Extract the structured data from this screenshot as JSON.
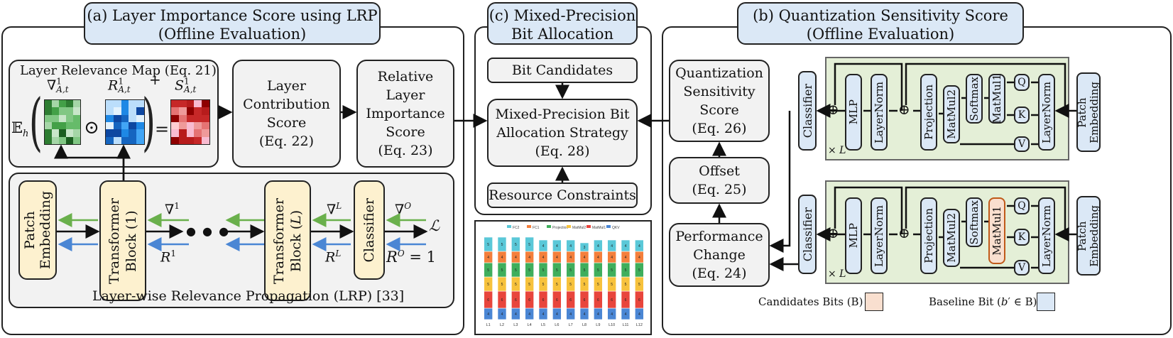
{
  "panels": {
    "a": {
      "title_line1": "(a) Layer Importance Score using LRP",
      "title_line2": "(Offline Evaluation)"
    },
    "c": {
      "title_line1": "(c) Mixed-Precision",
      "title_line2": "Bit Allocation"
    },
    "b": {
      "title_line1": "(b) Quantization Sensitivity Score",
      "title_line2": "(Offline Evaluation)"
    }
  },
  "relevance_map": {
    "title": "Layer Relevance Map (Eq. 21)",
    "expectation": "𝔼",
    "expectation_sub": "h",
    "grad_label": "∇",
    "grad_sup": "1",
    "grad_sub": "A,t",
    "odot": "⊙",
    "r_label": "R",
    "r_sup": "1",
    "r_sub": "A,t",
    "plus": "+",
    "equals": "=",
    "s_label": "S",
    "s_sup": "1",
    "s_sub": "A,t"
  },
  "contribution": {
    "line1": "Layer",
    "line2": "Contribution",
    "line3": "Score",
    "line4": "(Eq. 22)"
  },
  "relative": {
    "line1": "Relative",
    "line2": "Layer",
    "line3": "Importance",
    "line4": "Score",
    "line5": "(Eq. 23)"
  },
  "lrp": {
    "patch_embedding_1": "Patch",
    "patch_embedding_2": "Embedding",
    "tb1_line1": "Transformer",
    "tb1_line2": "Block (1)",
    "tbl_line1": "Transformer",
    "tbl_line2": "Block (",
    "tbl_L": "L",
    "tbl_close": ")",
    "classifier": "Classifier",
    "grad1": "∇",
    "grad1_sup": "1",
    "r1": "R",
    "r1_sup": "1",
    "gradL": "∇",
    "gradL_sup": "L",
    "rL": "R",
    "rL_sup": "L",
    "gradO": "∇",
    "gradO_sup": "O",
    "rO": "R",
    "rO_sup": "O",
    "rO_eq": "= 1",
    "loss": "ℒ",
    "dots": "● ● ●",
    "caption": "Layer-wise Relevance Propagation (LRP) [33]"
  },
  "mixed": {
    "bit_candidates": "Bit Candidates",
    "strategy_line1": "Mixed-Precision Bit",
    "strategy_line2": "Allocation Strategy",
    "strategy_line3": "(Eq. 28)",
    "resource": "Resource Constraints"
  },
  "sensitivity": {
    "qs_line1": "Quantization",
    "qs_line2": "Sensitivity",
    "qs_line3": "Score",
    "qs_line4": "(Eq. 26)",
    "offset_line1": "Offset",
    "offset_line2": "(Eq. 25)",
    "perf_line1": "Performance",
    "perf_line2": "Change",
    "perf_line3": "(Eq. 24)",
    "classifier": "Classifier",
    "mlp": "MLP",
    "layernorm": "LayerNorm",
    "projection": "Projection",
    "matmul2": "MatMul2",
    "softmax": "Softmax",
    "matmul1": "MatMul1",
    "q": "Q",
    "k": "K",
    "v": "V",
    "patch_embedding_1": "Patch",
    "patch_embedding_2": "Embedding",
    "times_L": "× L",
    "oplus": "⊕",
    "legend_candidates": "Candidates Bits (B)",
    "legend_baseline_pre": "Baseline Bit (",
    "legend_baseline_b": "b",
    "legend_baseline_post": "′ ∈ B)"
  },
  "chart_data": {
    "type": "bar",
    "stacked": true,
    "legend": [
      "FC2",
      "FC1",
      "Projection",
      "MatMul2",
      "MatMul1",
      "QKV"
    ],
    "colors": [
      "#5ac8d8",
      "#f47f3b",
      "#3fae5c",
      "#f7c23c",
      "#e8453c",
      "#4a86d4"
    ],
    "categories": [
      "L1",
      "L2",
      "L3",
      "L4",
      "L5",
      "L6",
      "L7",
      "L8",
      "L9",
      "L10",
      "L11",
      "L12"
    ],
    "series": [
      {
        "name": "QKV",
        "values": [
          4,
          4,
          4,
          4,
          4,
          4,
          4,
          4,
          4,
          4,
          4,
          4
        ]
      },
      {
        "name": "MatMul1",
        "values": [
          6,
          6,
          6,
          6,
          6,
          6,
          6,
          6,
          6,
          6,
          6,
          6
        ]
      },
      {
        "name": "MatMul2",
        "values": [
          5,
          5,
          5,
          5,
          5,
          5,
          5,
          5,
          5,
          5,
          5,
          5
        ]
      },
      {
        "name": "Projection",
        "values": [
          5,
          5,
          5,
          5,
          5,
          5,
          5,
          5,
          5,
          5,
          5,
          5
        ]
      },
      {
        "name": "FC1",
        "values": [
          4,
          4,
          4,
          4,
          4,
          4,
          4,
          4,
          4,
          4,
          4,
          4
        ]
      },
      {
        "name": "FC2",
        "values": [
          5,
          5,
          5,
          5,
          4,
          4,
          4,
          3,
          4,
          4,
          4,
          4
        ]
      }
    ]
  }
}
